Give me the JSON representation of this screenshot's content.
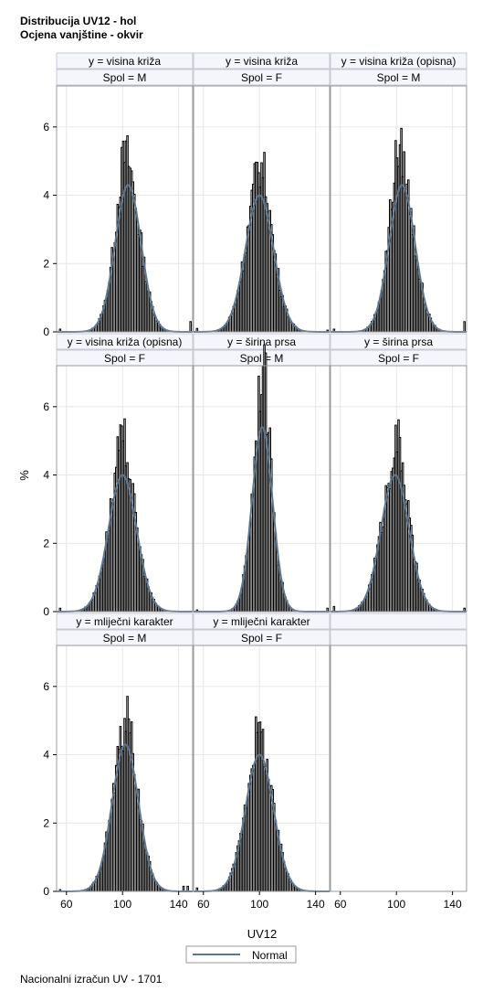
{
  "title": "Distribucija UV12 - hol",
  "subtitle": "Ocjena vanjštine - okvir",
  "footer": "Nacionalni izračun UV - 1701",
  "chart_data": {
    "type": "bar",
    "layout": "3x3 panel histogram grid",
    "xlabel": "UV12",
    "ylabel": "%",
    "xticks": [
      60,
      100,
      140
    ],
    "yticks": [
      0,
      2,
      4,
      6
    ],
    "xlim": [
      53,
      150
    ],
    "ylim": [
      0,
      7.2
    ],
    "bin_width": 1,
    "legend": {
      "position": "bottom-center",
      "entries": [
        "Normal"
      ]
    },
    "grid": true,
    "colors": {
      "bars_fill": "#ffffff",
      "bars_edge": "#000000",
      "normal_curve": "#5f7690",
      "grid": "#e6e6e6",
      "header_fill": "#f5f6fb",
      "frame": "#9a9a9a"
    },
    "panels": [
      {
        "y": "y = visina križa",
        "spol": "Spol = M",
        "normal": {
          "mean": 104,
          "sd": 9.2,
          "peak": 4.3
        },
        "peak_pct": 5.4,
        "peak_x": 99,
        "outliers": [
          {
            "x": 55,
            "pct": 0.08
          },
          {
            "x": 148,
            "pct": 0.3
          }
        ]
      },
      {
        "y": "y = visina križa",
        "spol": "Spol = F",
        "normal": {
          "mean": 100,
          "sd": 10,
          "peak": 4.0
        },
        "peak_pct": 4.95,
        "peak_x": 101,
        "outliers": [
          {
            "x": 55,
            "pct": 0.1
          },
          {
            "x": 148,
            "pct": 0.05
          }
        ]
      },
      {
        "y": "y = visina križa (opisna)",
        "spol": "Spol = M",
        "normal": {
          "mean": 104,
          "sd": 9.2,
          "peak": 4.3
        },
        "peak_pct": 5.6,
        "peak_x": 99,
        "outliers": [
          {
            "x": 55,
            "pct": 0.08
          },
          {
            "x": 148,
            "pct": 0.3
          }
        ]
      },
      {
        "y": "y = visina križa (opisna)",
        "spol": "Spol = F",
        "normal": {
          "mean": 100,
          "sd": 10,
          "peak": 4.0
        },
        "peak_pct": 5.0,
        "peak_x": 100,
        "outliers": [
          {
            "x": 55,
            "pct": 0.1
          }
        ]
      },
      {
        "y": "y = širina prsa",
        "spol": "Spol = M",
        "normal": {
          "mean": 102,
          "sd": 7.3,
          "peak": 5.4
        },
        "peak_pct": 7.2,
        "peak_x": 102,
        "outliers": [
          {
            "x": 55,
            "pct": 0.05
          },
          {
            "x": 148,
            "pct": 0.1
          }
        ]
      },
      {
        "y": "y = širina prsa",
        "spol": "Spol = F",
        "normal": {
          "mean": 99,
          "sd": 10,
          "peak": 4.0
        },
        "peak_pct": 5.1,
        "peak_x": 102,
        "outliers": [
          {
            "x": 55,
            "pct": 0.15
          },
          {
            "x": 148,
            "pct": 0.1
          }
        ]
      },
      {
        "y": "y = mliječni karakter",
        "spol": "Spol = M",
        "normal": {
          "mean": 102,
          "sd": 9.4,
          "peak": 4.3
        },
        "peak_pct": 5.05,
        "peak_x": 104,
        "outliers": [
          {
            "x": 55,
            "pct": 0.05
          },
          {
            "x": 143,
            "pct": 0.15
          },
          {
            "x": 146,
            "pct": 0.15
          }
        ]
      },
      {
        "y": "y = mliječni karakter",
        "spol": "Spol = F",
        "normal": {
          "mean": 100,
          "sd": 10,
          "peak": 4.0
        },
        "peak_pct": 4.65,
        "peak_x": 98,
        "outliers": [
          {
            "x": 55,
            "pct": 0.1
          }
        ]
      }
    ]
  }
}
